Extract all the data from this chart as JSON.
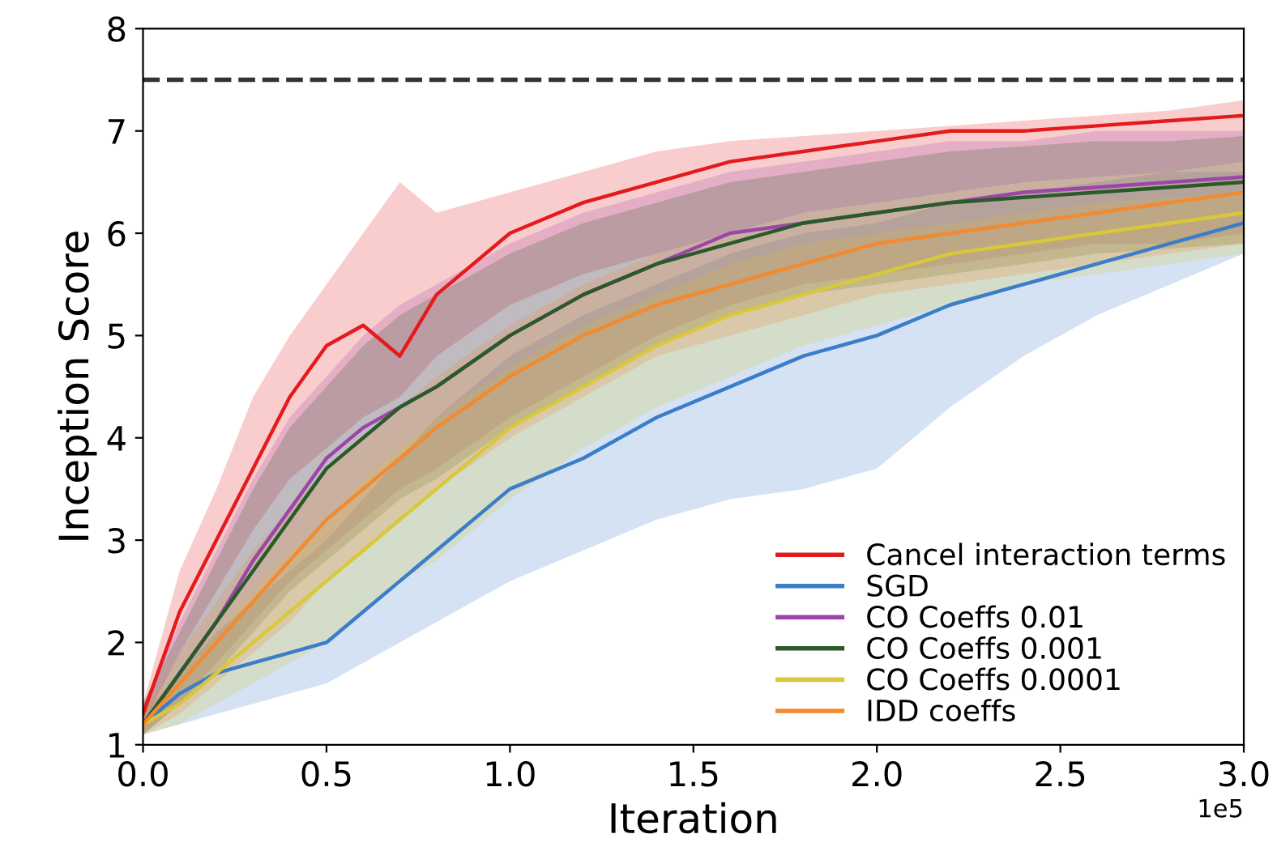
{
  "chart_data": {
    "type": "line",
    "xlabel": "Iteration",
    "ylabel": "Inception Score",
    "x": [
      0.0,
      0.1,
      0.2,
      0.3,
      0.4,
      0.5,
      0.6,
      0.7,
      0.8,
      1.0,
      1.2,
      1.4,
      1.6,
      1.8,
      2.0,
      2.2,
      2.4,
      2.6,
      2.8,
      3.0
    ],
    "xlim": [
      0.0,
      3.0
    ],
    "xticks": [
      {
        "value": 0,
        "label": "0.0"
      },
      0.5,
      {
        "value": 1,
        "label": "1.0"
      },
      1.5,
      {
        "value": 2,
        "label": "2.0"
      },
      2.5,
      {
        "value": 3,
        "label": "3.0"
      }
    ],
    "ylim": [
      1,
      8
    ],
    "yticks": [
      1,
      2,
      3,
      4,
      5,
      6,
      7,
      8
    ],
    "grid": false,
    "legend": "bottom right",
    "line_style": "solid",
    "marker": "none",
    "ref_lines": [
      {
        "axis": "y",
        "value": 7.5,
        "color": "#333333",
        "line_style": "dashed"
      }
    ],
    "annotations": [
      "1e5"
    ],
    "series": [
      {
        "name": "Cancel interaction terms",
        "color": "#e41a1c",
        "values": [
          1.3,
          2.3,
          3.0,
          3.7,
          4.4,
          4.9,
          5.1,
          4.8,
          5.4,
          6.0,
          6.3,
          6.5,
          6.7,
          6.8,
          6.9,
          7.0,
          7.0,
          7.05,
          7.1,
          7.15
        ],
        "upper": [
          1.4,
          2.7,
          3.5,
          4.4,
          5.0,
          5.5,
          6.0,
          6.5,
          6.2,
          6.4,
          6.6,
          6.8,
          6.9,
          6.95,
          7.0,
          7.05,
          7.1,
          7.15,
          7.2,
          7.3
        ],
        "lower": [
          1.2,
          1.9,
          2.5,
          3.1,
          3.6,
          3.9,
          4.2,
          4.4,
          4.8,
          5.3,
          5.6,
          5.8,
          6.0,
          6.2,
          6.3,
          6.4,
          6.5,
          6.55,
          6.6,
          6.7
        ]
      },
      {
        "name": "SGD",
        "color": "#3a7dc9",
        "values": [
          1.2,
          1.5,
          1.7,
          1.8,
          1.9,
          2.0,
          2.3,
          2.6,
          2.9,
          3.5,
          3.8,
          4.2,
          4.5,
          4.8,
          5.0,
          5.3,
          5.5,
          5.7,
          5.9,
          6.1
        ],
        "upper": [
          1.3,
          1.7,
          2.1,
          2.4,
          2.7,
          3.0,
          3.4,
          3.8,
          4.2,
          4.8,
          5.2,
          5.5,
          5.8,
          6.0,
          6.1,
          6.3,
          6.4,
          6.5,
          6.6,
          6.6
        ],
        "lower": [
          1.1,
          1.2,
          1.3,
          1.4,
          1.5,
          1.6,
          1.8,
          2.0,
          2.2,
          2.6,
          2.9,
          3.2,
          3.4,
          3.5,
          3.7,
          4.3,
          4.8,
          5.2,
          5.5,
          5.8
        ]
      },
      {
        "name": "CO Coeffs 0.01",
        "color": "#9b46a8",
        "values": [
          1.2,
          1.7,
          2.2,
          2.8,
          3.3,
          3.8,
          4.1,
          4.3,
          4.5,
          5.0,
          5.4,
          5.7,
          6.0,
          6.1,
          6.2,
          6.3,
          6.4,
          6.45,
          6.5,
          6.55
        ],
        "upper": [
          1.4,
          2.2,
          2.9,
          3.6,
          4.2,
          4.6,
          5.0,
          5.3,
          5.5,
          5.9,
          6.2,
          6.4,
          6.6,
          6.7,
          6.8,
          6.9,
          6.9,
          7.0,
          7.0,
          7.0
        ],
        "lower": [
          1.1,
          1.4,
          1.8,
          2.2,
          2.6,
          2.9,
          3.2,
          3.5,
          3.7,
          4.2,
          4.6,
          5.0,
          5.3,
          5.5,
          5.6,
          5.7,
          5.8,
          5.9,
          5.9,
          6.0
        ]
      },
      {
        "name": "CO Coeffs 0.001",
        "color": "#2a5a2a",
        "values": [
          1.2,
          1.7,
          2.2,
          2.7,
          3.2,
          3.7,
          4.0,
          4.3,
          4.5,
          5.0,
          5.4,
          5.7,
          5.9,
          6.1,
          6.2,
          6.3,
          6.35,
          6.4,
          6.45,
          6.5
        ],
        "upper": [
          1.4,
          2.1,
          2.8,
          3.5,
          4.1,
          4.5,
          4.9,
          5.2,
          5.4,
          5.8,
          6.1,
          6.3,
          6.5,
          6.6,
          6.7,
          6.8,
          6.85,
          6.9,
          6.9,
          6.95
        ],
        "lower": [
          1.1,
          1.4,
          1.7,
          2.1,
          2.5,
          2.8,
          3.1,
          3.4,
          3.6,
          4.1,
          4.5,
          4.9,
          5.2,
          5.4,
          5.5,
          5.6,
          5.7,
          5.8,
          5.85,
          5.9
        ]
      },
      {
        "name": "CO Coeffs 0.0001",
        "color": "#d8c83a",
        "values": [
          1.2,
          1.4,
          1.7,
          2.0,
          2.3,
          2.6,
          2.9,
          3.2,
          3.5,
          4.1,
          4.5,
          4.9,
          5.2,
          5.4,
          5.6,
          5.8,
          5.9,
          6.0,
          6.1,
          6.2
        ],
        "upper": [
          1.3,
          1.7,
          2.1,
          2.5,
          2.9,
          3.2,
          3.6,
          3.9,
          4.2,
          4.7,
          5.1,
          5.4,
          5.7,
          5.9,
          6.0,
          6.1,
          6.2,
          6.3,
          6.35,
          6.4
        ],
        "lower": [
          1.1,
          1.2,
          1.4,
          1.6,
          1.8,
          2.0,
          2.3,
          2.6,
          2.8,
          3.4,
          3.9,
          4.3,
          4.6,
          4.9,
          5.1,
          5.3,
          5.5,
          5.6,
          5.7,
          5.8
        ]
      },
      {
        "name": "IDD coeffs",
        "color": "#f28a30",
        "values": [
          1.2,
          1.6,
          2.0,
          2.4,
          2.8,
          3.2,
          3.5,
          3.8,
          4.1,
          4.6,
          5.0,
          5.3,
          5.5,
          5.7,
          5.9,
          6.0,
          6.1,
          6.2,
          6.3,
          6.4
        ],
        "upper": [
          1.3,
          1.9,
          2.4,
          2.9,
          3.3,
          3.7,
          4.0,
          4.3,
          4.6,
          5.1,
          5.5,
          5.8,
          6.0,
          6.2,
          6.3,
          6.4,
          6.5,
          6.55,
          6.6,
          6.7
        ],
        "lower": [
          1.1,
          1.3,
          1.6,
          1.9,
          2.2,
          2.6,
          2.9,
          3.2,
          3.5,
          4.0,
          4.4,
          4.8,
          5.0,
          5.2,
          5.4,
          5.5,
          5.6,
          5.7,
          5.8,
          5.9
        ]
      }
    ]
  }
}
